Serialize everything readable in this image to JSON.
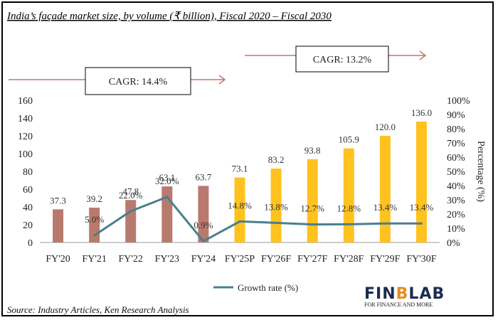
{
  "chart_data": {
    "type": "bar",
    "title": "India’s façade market size, by volume (₹ billion), Fiscal 2020 – Fiscal 2030",
    "categories": [
      "FY'20",
      "FY'21",
      "FY'22",
      "FY'23",
      "FY'24",
      "FY'25P",
      "FY'26F",
      "FY'27F",
      "FY'28F",
      "FY'29F",
      "FY'30F"
    ],
    "values": [
      37.3,
      39.2,
      47.8,
      63.1,
      63.7,
      73.1,
      83.2,
      93.8,
      105.9,
      120.0,
      136.0
    ],
    "value_labels": [
      "37.3",
      "39.2",
      "47.8",
      "63.1",
      "63.7",
      "73.1",
      "83.2",
      "93.8",
      "105.9",
      "120.0",
      "136.0"
    ],
    "bar_colors": [
      "#B97A6E",
      "#B97A6E",
      "#B97A6E",
      "#B97A6E",
      "#B97A6E",
      "#FFC21E",
      "#FFC21E",
      "#FFC21E",
      "#FFC21E",
      "#FFC21E",
      "#FFC21E"
    ],
    "ylim": [
      0,
      160
    ],
    "y_ticks": [
      "0",
      "20",
      "40",
      "60",
      "80",
      "100",
      "120",
      "140",
      "160"
    ],
    "y2_label": "Percentage (%)",
    "y2_lim": [
      0,
      100
    ],
    "y2_ticks": [
      "0%",
      "10%",
      "20%",
      "30%",
      "40%",
      "50%",
      "60%",
      "70%",
      "80%",
      "90%",
      "100%"
    ],
    "series": [
      {
        "name": "Growth rate (%)",
        "type": "line",
        "axis": "secondary",
        "color": "#4A7F8C",
        "x": [
          "FY'21",
          "FY'22",
          "FY'23",
          "FY'24",
          "FY'25P",
          "FY'26F",
          "FY'27F",
          "FY'28F",
          "FY'29F",
          "FY'30F"
        ],
        "values": [
          5.0,
          22.0,
          32.0,
          0.9,
          14.8,
          13.8,
          12.7,
          12.8,
          13.4,
          13.4
        ],
        "labels": [
          "5.0%",
          "22.0%",
          "32.0%",
          "0.9%",
          "14.8%",
          "13.8%",
          "12.7%",
          "12.8%",
          "13.4%",
          "13.4%"
        ]
      }
    ],
    "annotations": [
      "CAGR: 14.4%",
      "CAGR: 13.2%"
    ],
    "legend_position": "bottom",
    "grid": false
  },
  "source": "Source: Industry Articles, Ken Research Analysis",
  "brand": {
    "name": "FINBLAB",
    "tagline": "FOR FINANCE AND MORE",
    "colors": {
      "dark": "#1B2D4F",
      "accent": "#E98B1F"
    }
  }
}
